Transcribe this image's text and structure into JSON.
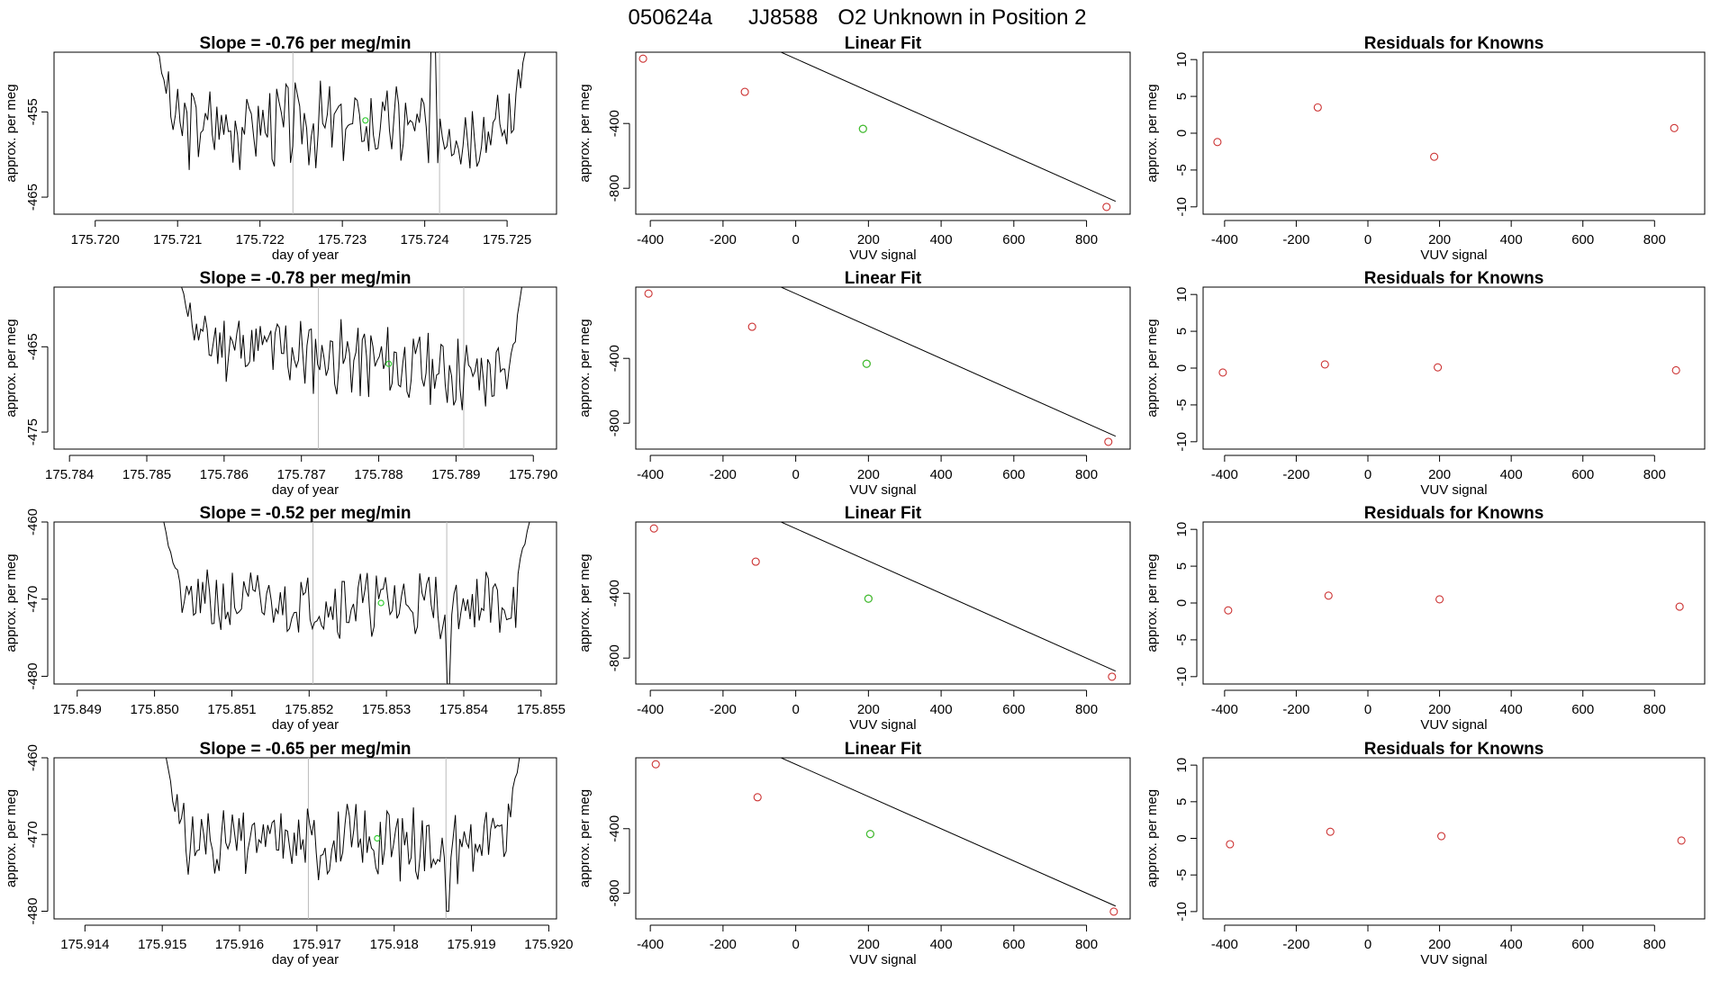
{
  "page_title": {
    "run_id": "050624a",
    "tank_id": "JJ8588",
    "description": "O2 Unknown in Position  2"
  },
  "colors": {
    "axis": "#000000",
    "series_line": "#000000",
    "known_point": "#cc3333",
    "unknown_point": "#33cc33",
    "window_marker": "#bbbbbb"
  },
  "chart_data": [
    {
      "id": "r1-time",
      "type": "line",
      "title": "Slope =  -0.76  per meg/min",
      "xlabel": "day of year",
      "ylabel": "approx. per meg",
      "xlim": [
        175.7195,
        175.7256
      ],
      "ylim": [
        -467,
        -448
      ],
      "xticks": [
        "175.720",
        "175.721",
        "175.722",
        "175.723",
        "175.724",
        "175.725"
      ],
      "yticks": [
        "-455",
        "-465"
      ],
      "series": [
        {
          "name": "per meg",
          "x0": 175.72075,
          "x1": 175.72522,
          "center": -456.5,
          "amp": 2.5,
          "start": -448,
          "end": -448,
          "seed": 3,
          "spikes": [
            [
              175.7241,
              -448,
              -461
            ]
          ]
        }
      ],
      "window_lines": [
        175.7224,
        175.72418
      ],
      "unknown_point": {
        "x": 175.72328,
        "y": -456
      }
    },
    {
      "id": "r1-fit",
      "type": "scatter",
      "title": "Linear Fit",
      "xlabel": "VUV signal",
      "ylabel": "approx. per meg",
      "xlim": [
        -440,
        920
      ],
      "ylim": [
        -960,
        40
      ],
      "xticks": [
        "-400",
        "-200",
        "0",
        "200",
        "400",
        "600",
        "800"
      ],
      "yticks": [
        "-400",
        "-800"
      ],
      "fit_line": {
        "x0": -420,
        "x1": 880,
        "slope": -1.0,
        "intercept": -0.5
      },
      "knowns": [
        {
          "x": -420,
          "y": 0
        },
        {
          "x": -140,
          "y": -205
        },
        {
          "x": 185,
          "y": -433
        },
        {
          "x": 855,
          "y": -915
        }
      ],
      "unknown": {
        "x": 185,
        "y": -433
      }
    },
    {
      "id": "r1-resid",
      "type": "scatter",
      "title": "Residuals for Knowns",
      "xlabel": "VUV signal",
      "ylabel": "approx. per meg",
      "xlim": [
        -460,
        940
      ],
      "ylim": [
        -11,
        11
      ],
      "xticks": [
        "-400",
        "-200",
        "0",
        "200",
        "400",
        "600",
        "800"
      ],
      "yticks": [
        "10",
        "5",
        "0",
        "-5",
        "-10"
      ],
      "knowns": [
        {
          "x": -420,
          "y": -1.2
        },
        {
          "x": -140,
          "y": 3.5
        },
        {
          "x": 185,
          "y": -3.2
        },
        {
          "x": 855,
          "y": 0.7
        }
      ]
    },
    {
      "id": "r2-time",
      "type": "line",
      "title": "Slope =  -0.78  per meg/min",
      "xlabel": "day of year",
      "ylabel": "approx. per meg",
      "xlim": [
        175.7838,
        175.7903
      ],
      "ylim": [
        -477,
        -458
      ],
      "xticks": [
        "175.784",
        "175.785",
        "175.786",
        "175.787",
        "175.788",
        "175.789",
        "175.790"
      ],
      "yticks": [
        "-465",
        "-475"
      ],
      "series": [
        {
          "name": "per meg",
          "x0": 175.78545,
          "x1": 175.78985,
          "center": -466.5,
          "amp": 2.2,
          "start": -458,
          "end": -458,
          "seed": 11,
          "slope": -5,
          "spikes": []
        }
      ],
      "window_lines": [
        175.78722,
        175.7891
      ],
      "unknown_point": {
        "x": 175.78813,
        "y": -467
      }
    },
    {
      "id": "r2-fit",
      "type": "scatter",
      "title": "Linear Fit",
      "xlabel": "VUV signal",
      "ylabel": "approx. per meg",
      "xlim": [
        -440,
        920
      ],
      "ylim": [
        -960,
        40
      ],
      "xticks": [
        "-400",
        "-200",
        "0",
        "200",
        "400",
        "600",
        "800"
      ],
      "yticks": [
        "-400",
        "-800"
      ],
      "fit_line": {
        "x0": -420,
        "x1": 880,
        "slope": -1.0,
        "intercept": -0.5
      },
      "knowns": [
        {
          "x": -405,
          "y": 0
        },
        {
          "x": -120,
          "y": -205
        },
        {
          "x": 195,
          "y": -433
        },
        {
          "x": 860,
          "y": -915
        }
      ],
      "unknown": {
        "x": 195,
        "y": -433
      }
    },
    {
      "id": "r2-resid",
      "type": "scatter",
      "title": "Residuals for Knowns",
      "xlabel": "VUV signal",
      "ylabel": "approx. per meg",
      "xlim": [
        -460,
        940
      ],
      "ylim": [
        -11,
        11
      ],
      "xticks": [
        "-400",
        "-200",
        "0",
        "200",
        "400",
        "600",
        "800"
      ],
      "yticks": [
        "10",
        "5",
        "0",
        "-5",
        "-10"
      ],
      "knowns": [
        {
          "x": -405,
          "y": -0.6
        },
        {
          "x": -120,
          "y": 0.5
        },
        {
          "x": 195,
          "y": 0.1
        },
        {
          "x": 860,
          "y": -0.3
        }
      ]
    },
    {
      "id": "r3-time",
      "type": "line",
      "title": "Slope =  -0.52  per meg/min",
      "xlabel": "day of year",
      "ylabel": "approx. per meg",
      "xlim": [
        175.8487,
        175.8552
      ],
      "ylim": [
        -481,
        -460
      ],
      "xticks": [
        "175.849",
        "175.850",
        "175.851",
        "175.852",
        "175.853",
        "175.854",
        "175.855"
      ],
      "yticks": [
        "-460",
        "-470",
        "-480"
      ],
      "series": [
        {
          "name": "per meg",
          "x0": 175.85012,
          "x1": 175.85485,
          "center": -470.5,
          "amp": 2.2,
          "start": -460,
          "end": -460,
          "seed": 21,
          "spikes": [
            [
              175.8538,
              -481,
              -472
            ]
          ]
        }
      ],
      "window_lines": [
        175.85205,
        175.85378
      ],
      "unknown_point": {
        "x": 175.85293,
        "y": -470.5
      }
    },
    {
      "id": "r3-fit",
      "type": "scatter",
      "title": "Linear Fit",
      "xlabel": "VUV signal",
      "ylabel": "approx. per meg",
      "xlim": [
        -440,
        920
      ],
      "ylim": [
        -960,
        40
      ],
      "xticks": [
        "-400",
        "-200",
        "0",
        "200",
        "400",
        "600",
        "800"
      ],
      "yticks": [
        "-400",
        "-800"
      ],
      "fit_line": {
        "x0": -420,
        "x1": 880,
        "slope": -1.0,
        "intercept": -0.5
      },
      "knowns": [
        {
          "x": -390,
          "y": 0
        },
        {
          "x": -110,
          "y": -205
        },
        {
          "x": 200,
          "y": -433
        },
        {
          "x": 870,
          "y": -915
        }
      ],
      "unknown": {
        "x": 200,
        "y": -433
      }
    },
    {
      "id": "r3-resid",
      "type": "scatter",
      "title": "Residuals for Knowns",
      "xlabel": "VUV signal",
      "ylabel": "approx. per meg",
      "xlim": [
        -460,
        940
      ],
      "ylim": [
        -11,
        11
      ],
      "xticks": [
        "-400",
        "-200",
        "0",
        "200",
        "400",
        "600",
        "800"
      ],
      "yticks": [
        "10",
        "5",
        "0",
        "-5",
        "-10"
      ],
      "knowns": [
        {
          "x": -390,
          "y": -1.0
        },
        {
          "x": -110,
          "y": 1.0
        },
        {
          "x": 200,
          "y": 0.5
        },
        {
          "x": 870,
          "y": -0.5
        }
      ]
    },
    {
      "id": "r4-time",
      "type": "line",
      "title": "Slope =  -0.65  per meg/min",
      "xlabel": "day of year",
      "ylabel": "approx. per meg",
      "xlim": [
        175.9136,
        175.9201
      ],
      "ylim": [
        -481,
        -460
      ],
      "xticks": [
        "175.914",
        "175.915",
        "175.916",
        "175.917",
        "175.918",
        "175.919",
        "175.920"
      ],
      "yticks": [
        "-460",
        "-470",
        "-480"
      ],
      "series": [
        {
          "name": "per meg",
          "x0": 175.91505,
          "x1": 175.91962,
          "center": -471,
          "amp": 2.5,
          "start": -460,
          "end": -460,
          "seed": 31,
          "spikes": [
            [
              175.9187,
              -480,
              -473
            ]
          ]
        }
      ],
      "window_lines": [
        175.91689,
        175.91867
      ],
      "unknown_point": {
        "x": 175.91778,
        "y": -470.5
      }
    },
    {
      "id": "r4-fit",
      "type": "scatter",
      "title": "Linear Fit",
      "xlabel": "VUV signal",
      "ylabel": "approx. per meg",
      "xlim": [
        -440,
        920
      ],
      "ylim": [
        -960,
        40
      ],
      "xticks": [
        "-400",
        "-200",
        "0",
        "200",
        "400",
        "600",
        "800"
      ],
      "yticks": [
        "-400",
        "-800"
      ],
      "fit_line": {
        "x0": -420,
        "x1": 880,
        "slope": -1.0,
        "intercept": -0.5
      },
      "knowns": [
        {
          "x": -385,
          "y": 0
        },
        {
          "x": -105,
          "y": -205
        },
        {
          "x": 205,
          "y": -433
        },
        {
          "x": 875,
          "y": -915
        }
      ],
      "unknown": {
        "x": 205,
        "y": -433
      }
    },
    {
      "id": "r4-resid",
      "type": "scatter",
      "title": "Residuals for Knowns",
      "xlabel": "VUV signal",
      "ylabel": "approx. per meg",
      "xlim": [
        -460,
        940
      ],
      "ylim": [
        -11,
        11
      ],
      "xticks": [
        "-400",
        "-200",
        "0",
        "200",
        "400",
        "600",
        "800"
      ],
      "yticks": [
        "10",
        "5",
        "0",
        "-5",
        "-10"
      ],
      "knowns": [
        {
          "x": -385,
          "y": -0.8
        },
        {
          "x": -105,
          "y": 0.9
        },
        {
          "x": 205,
          "y": 0.3
        },
        {
          "x": 875,
          "y": -0.3
        }
      ]
    }
  ]
}
